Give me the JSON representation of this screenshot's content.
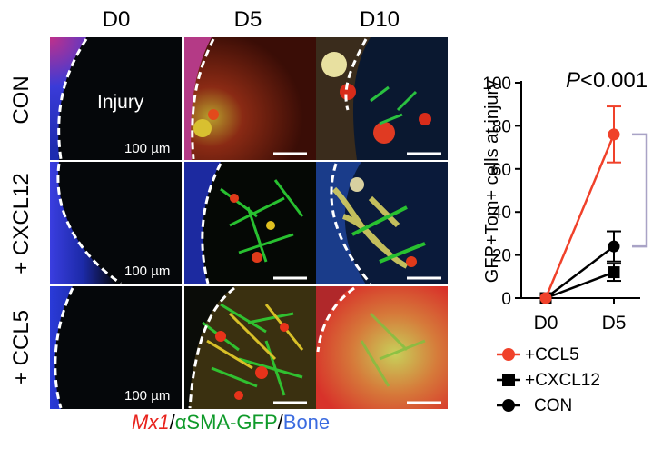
{
  "figure": {
    "columns": [
      "D0",
      "D5",
      "D10"
    ],
    "rows": [
      "CON",
      "+ CXCL12",
      "+ CCL5"
    ],
    "injury_label": "Injury",
    "scale_bar_label": "100 µm",
    "caption": {
      "part1": "Mx1",
      "sep1": "/",
      "part2": "αSMA-GFP",
      "sep2": "/",
      "part3": "Bone"
    }
  },
  "chart_data": {
    "type": "line",
    "categories": [
      "D0",
      "D5"
    ],
    "ylabel": "GFP+Tom+ cells at injury",
    "ylim": [
      0,
      100
    ],
    "yticks": [
      0,
      20,
      40,
      60,
      80,
      100
    ],
    "annotation": "P<0.001",
    "series": [
      {
        "name": "+CCL5",
        "values": [
          0,
          76
        ],
        "errors": [
          0,
          13
        ],
        "color": "#f0412a",
        "marker": "circle"
      },
      {
        "name": "+CXCL12",
        "values": [
          0,
          12
        ],
        "errors": [
          0,
          4
        ],
        "color": "#000000",
        "marker": "square"
      },
      {
        "name": "CON",
        "values": [
          0,
          24
        ],
        "errors": [
          0,
          7
        ],
        "color": "#000000",
        "marker": "circle"
      }
    ],
    "bracket_color": "#a9a3c6"
  }
}
